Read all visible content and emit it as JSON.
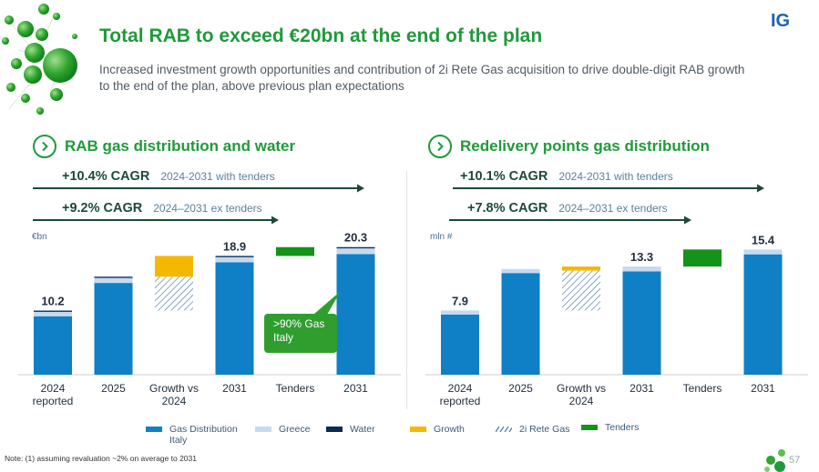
{
  "header": {
    "title": "Total RAB to exceed €20bn at the end of the plan",
    "subtitle": "Increased investment growth opportunities and contribution of 2i Rete Gas acquisition to drive double-digit RAB growth to the end of the plan, above previous plan expectations",
    "logo_text": "IG"
  },
  "left": {
    "section_title": "RAB gas distribution and water",
    "cagr1_value": "+10.4% CAGR",
    "cagr1_note": "2024-2031 with tenders",
    "cagr2_value": "+9.2% CAGR",
    "cagr2_note": "2024–2031 ex tenders",
    "unit": "€bn",
    "callout": ">90% Gas Italy"
  },
  "right": {
    "section_title": "Redelivery points gas distribution",
    "cagr1_value": "+10.1% CAGR",
    "cagr1_note": "2024-2031 with tenders",
    "cagr2_value": "+7.8% CAGR",
    "cagr2_note": "2024–2031 ex tenders",
    "unit": "mln #"
  },
  "legend": {
    "gas": "Gas Distribution Italy",
    "greece": "Greece",
    "water": "Water",
    "growth": "Growth",
    "rete": "2i Rete Gas",
    "tenders": "Tenders"
  },
  "colors": {
    "gas": "#0f7fc6",
    "greece": "#c5daf0",
    "water": "#0b2c55",
    "growth": "#f5b800",
    "rete": "#4a78a8",
    "tenders": "#13931a",
    "title": "#1f9a3a"
  },
  "footnote": "Note: (1) assuming revaluation ~2% on average to 2031",
  "page_number": "57",
  "chart_data": [
    {
      "type": "bar",
      "title": "RAB gas distribution and water",
      "ylabel": "€bn",
      "categories": [
        "2024 reported",
        "2025",
        "Growth vs 2024",
        "2031",
        "Tenders",
        "2031"
      ],
      "totals": [
        "10.2",
        "",
        "",
        "18.9",
        "",
        "20.3"
      ],
      "ylim": [
        0,
        22
      ],
      "bars": [
        {
          "base": 0,
          "segments": [
            {
              "key": "gas",
              "value": 9.3
            },
            {
              "key": "greece",
              "value": 0.7
            },
            {
              "key": "water",
              "value": 0.2
            }
          ]
        },
        {
          "base": 0,
          "segments": [
            {
              "key": "gas",
              "value": 14.6
            },
            {
              "key": "greece",
              "value": 0.8
            },
            {
              "key": "water",
              "value": 0.2
            }
          ]
        },
        {
          "base": 10.2,
          "segments": [
            {
              "key": "rete",
              "value": 5.4
            },
            {
              "key": "growth",
              "value": 3.3
            }
          ]
        },
        {
          "base": 0,
          "segments": [
            {
              "key": "gas",
              "value": 17.9
            },
            {
              "key": "greece",
              "value": 0.8
            },
            {
              "key": "water",
              "value": 0.2
            }
          ]
        },
        {
          "base": 18.9,
          "segments": [
            {
              "key": "tenders",
              "value": 1.4
            }
          ]
        },
        {
          "base": 0,
          "segments": [
            {
              "key": "gas",
              "value": 19.2
            },
            {
              "key": "greece",
              "value": 0.9
            },
            {
              "key": "water",
              "value": 0.2
            }
          ]
        }
      ]
    },
    {
      "type": "bar",
      "title": "Redelivery points gas distribution",
      "ylabel": "mln #",
      "categories": [
        "2024 reported",
        "2025",
        "Growth vs 2024",
        "2031",
        "Tenders",
        "2031"
      ],
      "totals": [
        "7.9",
        "",
        "",
        "13.3",
        "",
        "15.4"
      ],
      "ylim": [
        0,
        17
      ],
      "bars": [
        {
          "base": 0,
          "segments": [
            {
              "key": "gas",
              "value": 7.4
            },
            {
              "key": "greece",
              "value": 0.5
            }
          ]
        },
        {
          "base": 0,
          "segments": [
            {
              "key": "gas",
              "value": 12.5
            },
            {
              "key": "greece",
              "value": 0.5
            }
          ]
        },
        {
          "base": 7.9,
          "segments": [
            {
              "key": "rete",
              "value": 4.9
            },
            {
              "key": "growth",
              "value": 0.5
            }
          ]
        },
        {
          "base": 0,
          "segments": [
            {
              "key": "gas",
              "value": 12.7
            },
            {
              "key": "greece",
              "value": 0.6
            }
          ]
        },
        {
          "base": 13.3,
          "segments": [
            {
              "key": "tenders",
              "value": 2.1
            }
          ]
        },
        {
          "base": 0,
          "segments": [
            {
              "key": "gas",
              "value": 14.8
            },
            {
              "key": "greece",
              "value": 0.6
            }
          ]
        }
      ]
    }
  ]
}
